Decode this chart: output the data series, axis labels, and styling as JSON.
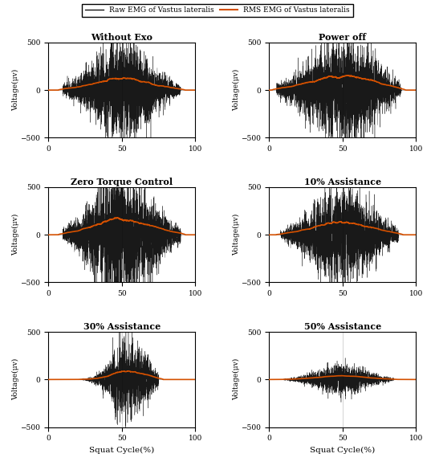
{
  "titles": [
    "Without Exo",
    "Power off",
    "Zero Torque Control",
    "10% Assistance",
    "30% Assistance",
    "50% Assistance"
  ],
  "ylabel": "Voltage(μv)",
  "xlabel": "Squat Cycle(%)",
  "xlim": [
    0,
    100
  ],
  "ylim": [
    -500,
    500
  ],
  "yticks": [
    -500,
    0,
    500
  ],
  "xticks": [
    0,
    50,
    100
  ],
  "raw_color": "#000000",
  "rms_color": "#D45000",
  "legend_raw": "Raw EMG of Vastus lateralis",
  "legend_rms": "RMS EMG of Vastus lateralis",
  "peak_amplitudes": [
    250,
    280,
    330,
    260,
    210,
    80
  ],
  "rms_peaks": [
    130,
    155,
    180,
    140,
    90,
    40
  ],
  "activity_starts": [
    10,
    5,
    10,
    8,
    20,
    10
  ],
  "activity_ends": [
    90,
    90,
    90,
    88,
    75,
    85
  ],
  "activity_centers": [
    50,
    50,
    50,
    50,
    55,
    50
  ],
  "activity_widths": [
    38,
    42,
    38,
    38,
    22,
    32
  ],
  "background_color": "#ffffff",
  "figsize": [
    5.42,
    5.8
  ],
  "dpi": 100
}
